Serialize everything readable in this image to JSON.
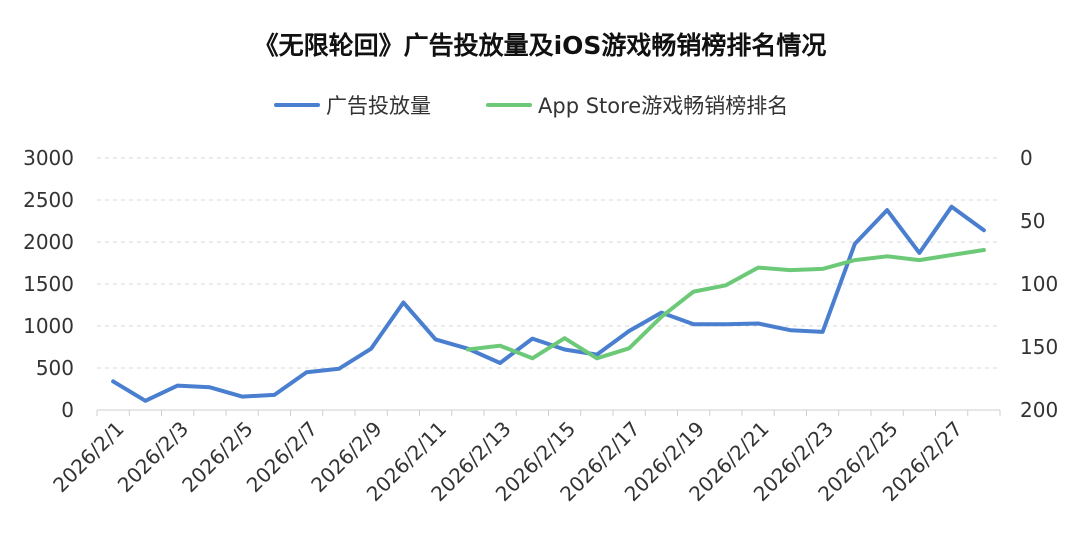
{
  "chart_data": {
    "type": "line",
    "title": "《无限轮回》广告投放量及iOS游戏畅销榜排名情况",
    "legend_position": "top-center",
    "grid": true,
    "categories": [
      "2026/2/1",
      "2026/2/2",
      "2026/2/3",
      "2026/2/4",
      "2026/2/5",
      "2026/2/6",
      "2026/2/7",
      "2026/2/8",
      "2026/2/9",
      "2026/2/10",
      "2026/2/11",
      "2026/2/12",
      "2026/2/13",
      "2026/2/14",
      "2026/2/15",
      "2026/2/16",
      "2026/2/17",
      "2026/2/18",
      "2026/2/19",
      "2026/2/20",
      "2026/2/21",
      "2026/2/22",
      "2026/2/23",
      "2026/2/24",
      "2026/2/25",
      "2026/2/26",
      "2026/2/27",
      "2026/2/28"
    ],
    "x_tick_labels": [
      "2026/2/1",
      "2026/2/3",
      "2026/2/5",
      "2026/2/7",
      "2026/2/9",
      "2026/2/11",
      "2026/2/13",
      "2026/2/15",
      "2026/2/17",
      "2026/2/19",
      "2026/2/21",
      "2026/2/23",
      "2026/2/25",
      "2026/2/27"
    ],
    "y_left": {
      "min": 0,
      "max": 3000,
      "ticks": [
        "0",
        "500",
        "1000",
        "1500",
        "2000",
        "2500",
        "3000"
      ]
    },
    "y_right": {
      "min": 0,
      "max": 200,
      "inverted": true,
      "ticks": [
        "0",
        "50",
        "100",
        "150",
        "200"
      ]
    },
    "series": [
      {
        "name": "广告投放量",
        "axis": "left",
        "color": "#4a7fd0",
        "values": [
          340,
          110,
          290,
          270,
          160,
          180,
          450,
          490,
          730,
          1280,
          840,
          730,
          560,
          850,
          720,
          660,
          940,
          1160,
          1020,
          1020,
          1030,
          950,
          930,
          1980,
          2380,
          1870,
          2420,
          2140
        ]
      },
      {
        "name": "App Store游戏畅销榜排名",
        "axis": "right",
        "color": "#6cc977",
        "values": [
          null,
          null,
          null,
          null,
          null,
          null,
          null,
          null,
          null,
          null,
          null,
          152,
          149,
          159,
          143,
          159,
          151,
          126,
          106,
          101,
          87,
          89,
          88,
          81,
          78,
          81,
          77,
          73
        ]
      }
    ]
  }
}
